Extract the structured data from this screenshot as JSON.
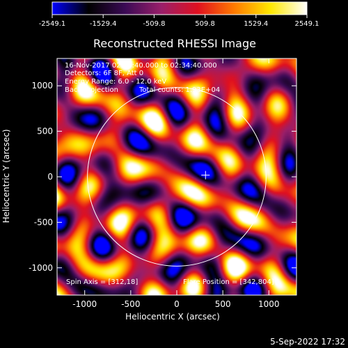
{
  "chart_data": {
    "type": "heatmap",
    "title": "Reconstructed RHESSI Image",
    "xlabel": "Heliocentric X (arcsec)",
    "ylabel": "Heliocentric Y (arcsec)",
    "xlim": [
      -1300,
      1300
    ],
    "ylim": [
      -1300,
      1300
    ],
    "x_ticks": [
      -1000,
      -500,
      0,
      500,
      1000
    ],
    "y_ticks": [
      -1000,
      -500,
      0,
      500,
      1000
    ],
    "colorbar": {
      "min": -2549.1,
      "max": 2549.1,
      "tick_values": [
        -2549.1,
        -1529.4,
        -509.8,
        509.8,
        1529.4,
        2549.1
      ],
      "tick_labels": [
        "-2549.1",
        "-1529.4",
        "-509.8",
        "509.8",
        "1529.4",
        "2549.1"
      ],
      "colormap": [
        "#0000ff",
        "#000000",
        "#3a0a55",
        "#9a1f6a",
        "#e01020",
        "#ff7a00",
        "#ffe800",
        "#ffffff"
      ]
    },
    "solar_limb": {
      "center": [
        0,
        0
      ],
      "radius": 970
    },
    "flare_marker": {
      "x": 312,
      "y": 18
    },
    "annotations": {
      "time_range": "16-Nov-2017 02:28:40.000 to 02:34:40.000",
      "detectors": "Detectors: 6F 8F, Att 0",
      "energy_range": "Energy Range: 6.0 - 12.0 keV",
      "method": "Back Projection",
      "total_counts": "Total counts: 1.93E+04",
      "spin_axis": "Spin Axis = [312,18]",
      "flare_position": "Flare Position = [342,804]"
    },
    "timestamp": "5-Sep-2022 17:32"
  }
}
